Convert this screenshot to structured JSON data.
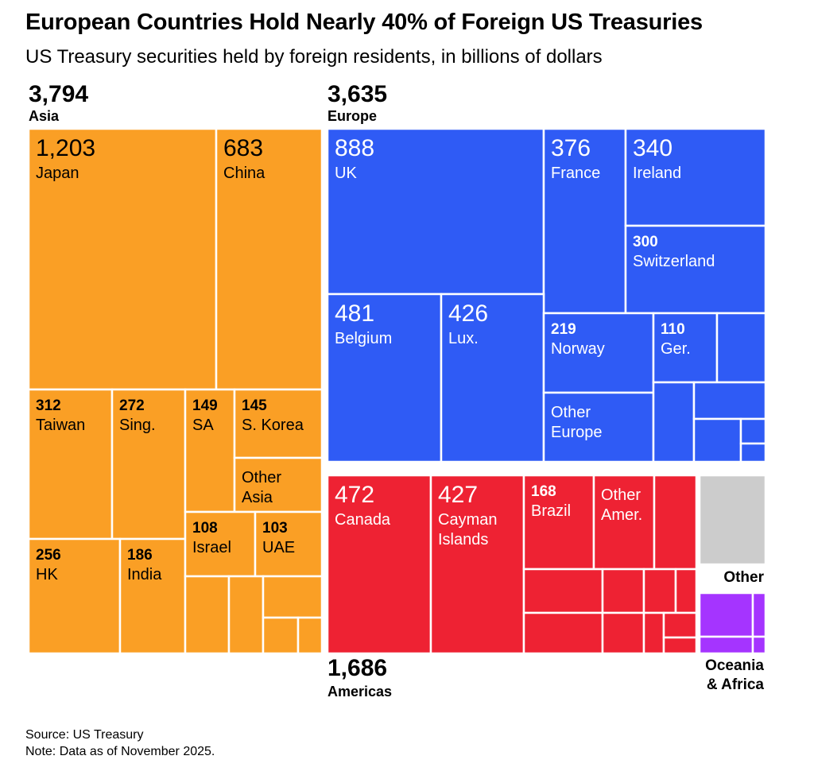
{
  "header": {
    "title": "European Countries Hold Nearly 40% of Foreign US Treasuries",
    "subtitle": "US Treasury securities held by foreign residents, in billions of dollars"
  },
  "footer": {
    "source": "Source: US Treasury",
    "note": "Note: Data as of November 2025."
  },
  "colors": {
    "asia": "#FA9F25",
    "europe": "#2F5BF5",
    "americas": "#EE2233",
    "other": "#CCCCCC",
    "oceania_africa": "#A534FF",
    "background": "#FFFFFF"
  },
  "chart_data": {
    "type": "treemap",
    "title": "European Countries Hold Nearly 40% of Foreign US Treasuries",
    "subtitle": "US Treasury securities held by foreign residents, in billions of dollars",
    "units": "billions of dollars",
    "groups": [
      {
        "name": "Asia",
        "total": "3,794",
        "items": [
          {
            "name": "Japan",
            "value": "1,203"
          },
          {
            "name": "China",
            "value": "683"
          },
          {
            "name": "Taiwan",
            "value": "312"
          },
          {
            "name": "Sing.",
            "value": "272"
          },
          {
            "name": "SA",
            "value": "149"
          },
          {
            "name": "S. Korea",
            "value": "145"
          },
          {
            "name": "Other Asia",
            "value": ""
          },
          {
            "name": "HK",
            "value": "256"
          },
          {
            "name": "India",
            "value": "186"
          },
          {
            "name": "Israel",
            "value": "108"
          },
          {
            "name": "UAE",
            "value": "103"
          }
        ]
      },
      {
        "name": "Europe",
        "total": "3,635",
        "items": [
          {
            "name": "UK",
            "value": "888"
          },
          {
            "name": "France",
            "value": "376"
          },
          {
            "name": "Ireland",
            "value": "340"
          },
          {
            "name": "Switzerland",
            "value": "300"
          },
          {
            "name": "Belgium",
            "value": "481"
          },
          {
            "name": "Lux.",
            "value": "426"
          },
          {
            "name": "Norway",
            "value": "219"
          },
          {
            "name": "Ger.",
            "value": "110"
          },
          {
            "name": "Other Europe",
            "value": ""
          }
        ]
      },
      {
        "name": "Americas",
        "total": "1,686",
        "items": [
          {
            "name": "Canada",
            "value": "472"
          },
          {
            "name": "Cayman Islands",
            "value": "427"
          },
          {
            "name": "Brazil",
            "value": "168"
          },
          {
            "name": "Other Amer.",
            "value": ""
          }
        ]
      },
      {
        "name": "Other",
        "total": "",
        "items": []
      },
      {
        "name": "Oceania & Africa",
        "total": "",
        "items": []
      }
    ]
  }
}
